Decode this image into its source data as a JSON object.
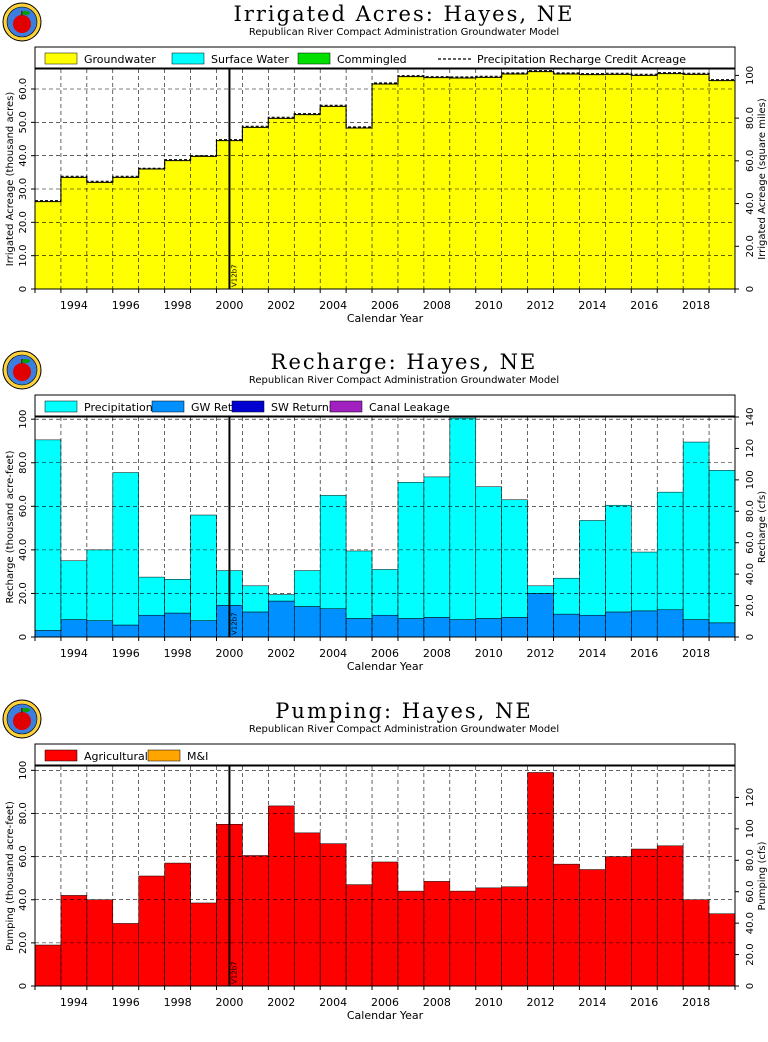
{
  "chart_data": [
    {
      "type": "area",
      "title": "Irrigated Acres: Hayes, NE",
      "subtitle": "Republican River Compact Administration Groundwater Model",
      "xlabel": "Calendar Year",
      "ylabel": "Irrigated Acreage (thousand acres)",
      "y2label": "Irrigated Acreage (square miles)",
      "xlim": [
        1993,
        2020
      ],
      "ylim": [
        0,
        66
      ],
      "y2lim": [
        0,
        103
      ],
      "x_ticks": [
        "1994",
        "1996",
        "1998",
        "2000",
        "2002",
        "2004",
        "2006",
        "2008",
        "2010",
        "2012",
        "2014",
        "2016",
        "2018"
      ],
      "y_ticks": [
        "0",
        "10.0",
        "20.0",
        "30.0",
        "40.0",
        "50.0",
        "60.0"
      ],
      "y2_ticks": [
        "0",
        "20.0",
        "40.0",
        "60.0",
        "80.0",
        "100"
      ],
      "legend": [
        "Groundwater",
        "Surface Water",
        "Commingled",
        "Precipitation Recharge Credit Acreage"
      ],
      "legend_placement": "top",
      "grid": true,
      "marker_label": "V12b7",
      "marker_x": 2000.5,
      "x": [
        1993,
        1994,
        1995,
        1996,
        1997,
        1998,
        1999,
        2000,
        2001,
        2002,
        2003,
        2004,
        2005,
        2006,
        2007,
        2008,
        2009,
        2010,
        2011,
        2012,
        2013,
        2014,
        2015,
        2016,
        2017,
        2018,
        2019
      ],
      "series": [
        {
          "name": "Groundwater",
          "values": [
            26.2,
            33.5,
            32.0,
            33.5,
            36.0,
            38.5,
            39.8,
            44.5,
            48.5,
            51.2,
            52.3,
            54.8,
            48.3,
            61.5,
            63.7,
            63.4,
            63.3,
            63.5,
            64.5,
            65.2,
            64.5,
            64.3,
            64.4,
            64.1,
            64.6,
            64.4,
            62.5
          ]
        },
        {
          "name": "Surface Water",
          "values": [
            0,
            0,
            0,
            0,
            0,
            0,
            0,
            0,
            0,
            0,
            0,
            0,
            0,
            0,
            0,
            0,
            0,
            0,
            0,
            0,
            0,
            0,
            0,
            0,
            0,
            0,
            0
          ]
        },
        {
          "name": "Commingled",
          "values": [
            0,
            0,
            0,
            0,
            0,
            0,
            0,
            0,
            0,
            0,
            0,
            0,
            0,
            0,
            0,
            0,
            0,
            0,
            0,
            0,
            0,
            0,
            0,
            0,
            0,
            0,
            0
          ]
        },
        {
          "name": "Precipitation Recharge Credit Acreage",
          "values": [
            26.5,
            33.8,
            32.3,
            33.8,
            36.2,
            38.8,
            40.0,
            44.8,
            48.8,
            51.5,
            52.6,
            55.1,
            48.6,
            61.8,
            64.0,
            63.7,
            63.6,
            63.8,
            64.8,
            65.5,
            64.8,
            64.6,
            64.7,
            64.4,
            64.9,
            64.7,
            62.8
          ]
        }
      ],
      "colors": {
        "Groundwater": "#ffff00",
        "Surface Water": "#00ffff",
        "Commingled": "#00e000",
        "Precipitation Recharge Credit Acreage": "#000000"
      }
    },
    {
      "type": "bar",
      "title": "Recharge: Hayes, NE",
      "subtitle": "Republican River Compact Administration Groundwater Model",
      "xlabel": "Calendar Year",
      "ylabel": "Recharge (thousand acre-feet)",
      "y2label": "Recharge (cfs)",
      "xlim": [
        1993,
        2020
      ],
      "ylim": [
        0,
        101
      ],
      "y2lim": [
        0,
        140
      ],
      "x_ticks": [
        "1994",
        "1996",
        "1998",
        "2000",
        "2002",
        "2004",
        "2006",
        "2008",
        "2010",
        "2012",
        "2014",
        "2016",
        "2018"
      ],
      "y_ticks": [
        "0",
        "20.0",
        "40.0",
        "60.0",
        "80.0",
        "100"
      ],
      "y2_ticks": [
        "0",
        "20.0",
        "40.0",
        "60.0",
        "80.0",
        "100",
        "120",
        "140"
      ],
      "legend": [
        "Precipitation",
        "GW Returns",
        "SW Returns",
        "Canal Leakage"
      ],
      "legend_placement": "top",
      "grid": true,
      "stacked": true,
      "marker_label": "V12b7",
      "marker_x": 2000.5,
      "x": [
        1993,
        1994,
        1995,
        1996,
        1997,
        1998,
        1999,
        2000,
        2001,
        2002,
        2003,
        2004,
        2005,
        2006,
        2007,
        2008,
        2009,
        2010,
        2011,
        2012,
        2013,
        2014,
        2015,
        2016,
        2017,
        2018,
        2019
      ],
      "series": [
        {
          "name": "GW Returns",
          "values": [
            3,
            8,
            7.5,
            5.5,
            10,
            11,
            7.5,
            14.5,
            11.5,
            16.5,
            14,
            13,
            8.5,
            10,
            8.5,
            9,
            8,
            8.5,
            9,
            20,
            10.5,
            10,
            11.5,
            12,
            12.5,
            8,
            6.5
          ]
        },
        {
          "name": "Precipitation",
          "values": [
            87.5,
            27,
            32.5,
            70,
            17.5,
            15.5,
            48.5,
            16,
            12,
            3,
            16.5,
            52,
            31,
            21,
            62.5,
            64.5,
            92.5,
            60.5,
            54,
            3.5,
            16.5,
            43.5,
            49,
            27,
            54,
            81.5,
            70
          ]
        },
        {
          "name": "SW Returns",
          "values": [
            0,
            0,
            0,
            0,
            0,
            0,
            0,
            0,
            0,
            0,
            0,
            0,
            0,
            0,
            0,
            0,
            0,
            0,
            0,
            0,
            0,
            0,
            0,
            0,
            0,
            0,
            0
          ]
        },
        {
          "name": "Canal Leakage",
          "values": [
            0,
            0,
            0,
            0,
            0,
            0,
            0,
            0,
            0,
            0,
            0,
            0,
            0,
            0,
            0,
            0,
            0,
            0,
            0,
            0,
            0,
            0,
            0,
            0,
            0,
            0,
            0
          ]
        }
      ],
      "colors": {
        "Precipitation": "#00ffff",
        "GW Returns": "#0090ff",
        "SW Returns": "#0000d0",
        "Canal Leakage": "#a020c0"
      }
    },
    {
      "type": "bar",
      "title": "Pumping: Hayes, NE",
      "subtitle": "Republican River Compact Administration Groundwater Model",
      "xlabel": "Calendar Year",
      "ylabel": "Pumping (thousand acre-feet)",
      "y2label": "Pumping (cfs)",
      "xlim": [
        1993,
        2020
      ],
      "ylim": [
        0,
        102
      ],
      "y2lim": [
        0,
        140
      ],
      "x_ticks": [
        "1994",
        "1996",
        "1998",
        "2000",
        "2002",
        "2004",
        "2006",
        "2008",
        "2010",
        "2012",
        "2014",
        "2016",
        "2018"
      ],
      "y_ticks": [
        "0",
        "20.0",
        "40.0",
        "60.0",
        "80.0",
        "100"
      ],
      "y2_ticks": [
        "0",
        "20.0",
        "40.0",
        "60.0",
        "80.0",
        "100",
        "120"
      ],
      "legend": [
        "Agricultural",
        "M&I"
      ],
      "legend_placement": "top",
      "grid": true,
      "stacked": true,
      "marker_label": "V12b7",
      "marker_x": 2000.5,
      "x": [
        1993,
        1994,
        1995,
        1996,
        1997,
        1998,
        1999,
        2000,
        2001,
        2002,
        2003,
        2004,
        2005,
        2006,
        2007,
        2008,
        2009,
        2010,
        2011,
        2012,
        2013,
        2014,
        2015,
        2016,
        2017,
        2018,
        2019
      ],
      "series": [
        {
          "name": "Agricultural",
          "values": [
            19,
            42,
            40,
            29,
            51,
            57,
            38.5,
            75,
            60.5,
            83.5,
            71,
            66,
            47,
            57.5,
            44,
            48.5,
            44,
            45.5,
            46,
            99,
            56.5,
            54,
            60,
            63.5,
            65,
            40,
            33.5
          ]
        },
        {
          "name": "M&I",
          "values": [
            0,
            0,
            0,
            0,
            0,
            0,
            0,
            0,
            0,
            0,
            0,
            0,
            0,
            0,
            0,
            0,
            0,
            0,
            0,
            0,
            0,
            0,
            0,
            0,
            0,
            0,
            0
          ]
        }
      ],
      "colors": {
        "Agricultural": "#ff0000",
        "M&I": "#ffa500"
      }
    }
  ]
}
